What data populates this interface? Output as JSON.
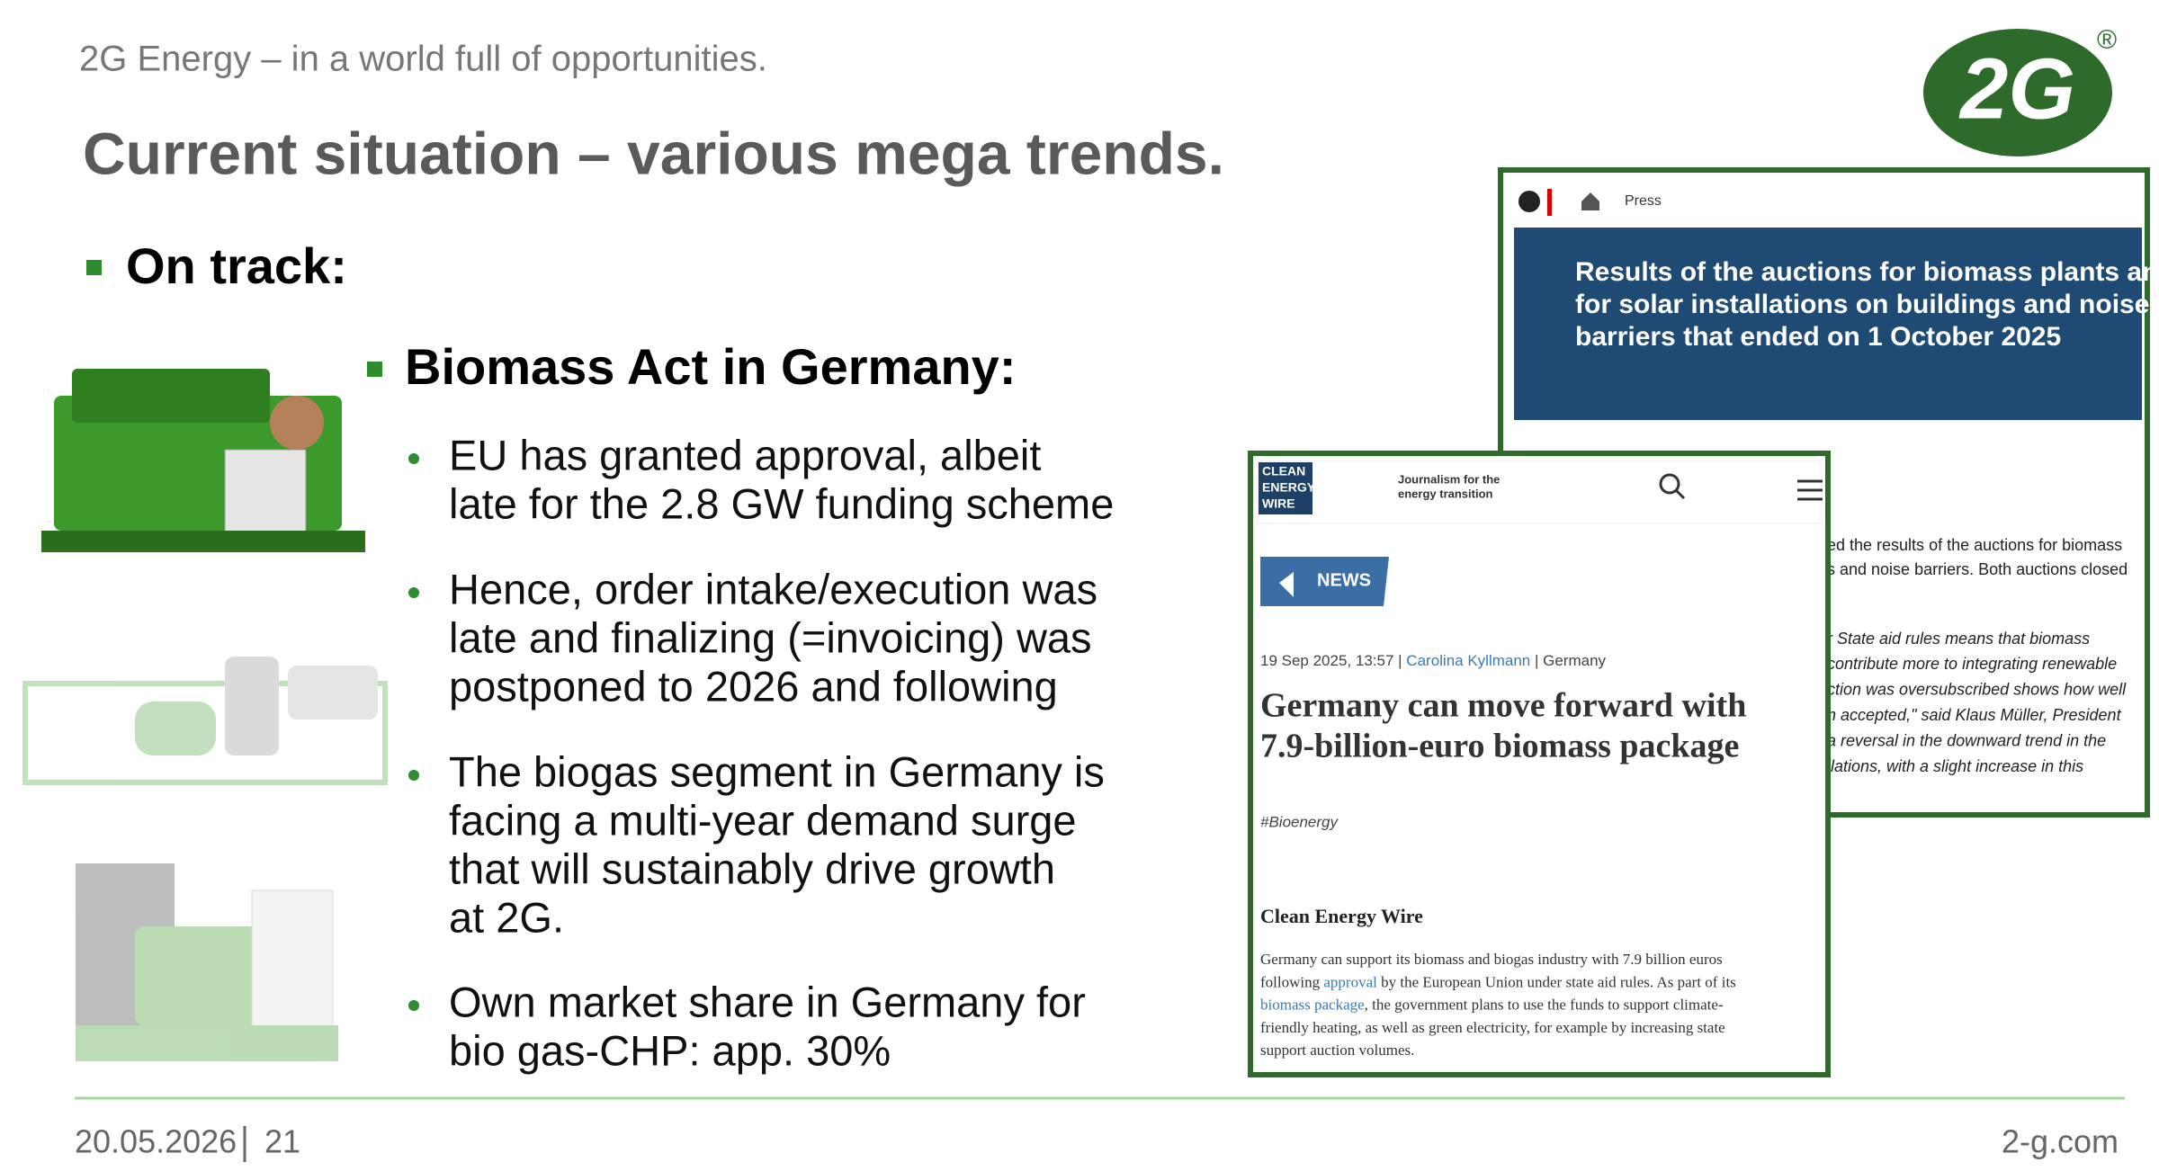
{
  "header": {
    "tagline": "2G Energy – in a world full of opportunities.",
    "title": "Current situation – various mega trends.",
    "logo": "2G",
    "registered": "®"
  },
  "content": {
    "level1": "On track:",
    "level2": "Biomass Act in Germany:",
    "bullets": [
      [
        "EU has granted approval, albeit",
        "late for the 2.8 GW funding scheme"
      ],
      [
        "Hence, order intake/execution was",
        "late and finalizing (=invoicing) was",
        "postponed to 2026 and following"
      ],
      [
        "The biogas segment in Germany is",
        "facing a multi-year demand surge",
        "that will sustainably drive growth",
        "at 2G."
      ],
      [
        "Own market share in Germany for",
        "bio gas-CHP: app. 30%"
      ]
    ]
  },
  "screenshot_ministry": {
    "breadcrumb": "Press",
    "headline": [
      "Results of the auctions for biomass plants and",
      "for solar installations on buildings and noise",
      "barriers that ended on 1 October 2025"
    ],
    "body": [
      "ed the results of the auctions for biomass",
      "s and noise barriers. Both auctions closed"
    ],
    "quote": [
      "r State aid rules means that biomass",
      "contribute more to integrating renewable",
      "ction was oversubscribed shows how well",
      "n accepted,\" said Klaus Müller, President",
      "a reversal in the downward trend in the",
      "llations, with a slight increase in this"
    ]
  },
  "screenshot_cew": {
    "logo": [
      "CLEAN",
      "ENERGY",
      "WIRE"
    ],
    "slogan": [
      "Journalism for the",
      "energy transition"
    ],
    "badge": "NEWS",
    "date": "19 Sep 2025, 13:57",
    "author": "Carolina Kyllmann",
    "location": "Germany",
    "headline": [
      "Germany can move forward with",
      "7.9-billion-euro biomass package"
    ],
    "tag": "#Bioenergy",
    "source": "Clean Energy Wire",
    "body": [
      [
        "Germany can support its biomass and biogas industry with 7.9 billion euros"
      ],
      [
        "following ",
        "approval",
        " by the European Union under state aid rules. As part of its"
      ],
      [
        "biomass package",
        ", the government plans to use the funds to support climate-"
      ],
      [
        "friendly heating, as well as green electricity, for example by increasing state"
      ],
      [
        "support auction volumes."
      ]
    ]
  },
  "footer": {
    "date": "20.05.2026",
    "page": "21",
    "website": "2-g.com"
  }
}
